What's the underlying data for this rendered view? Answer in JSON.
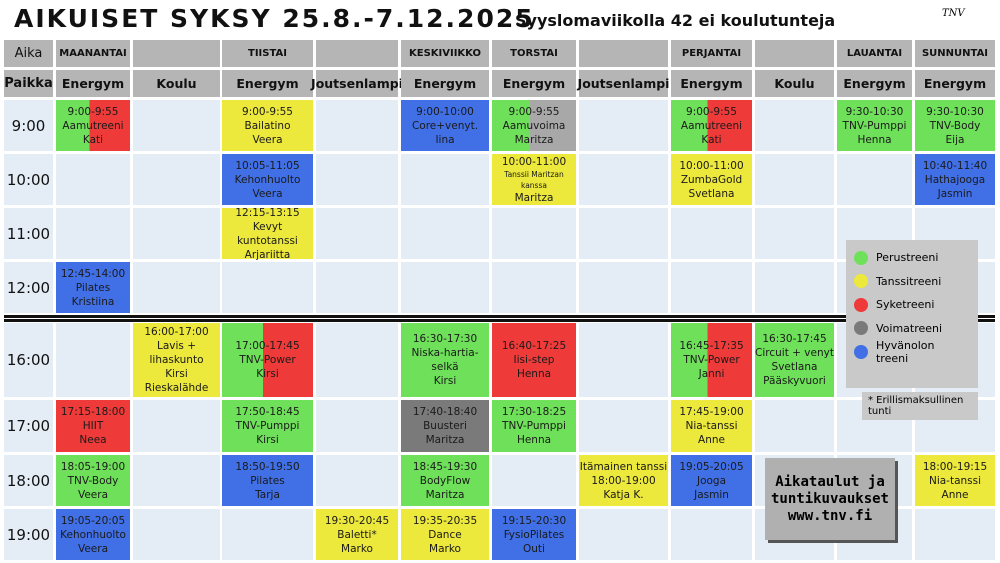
{
  "header": {
    "title": "AIKUISET SYKSY 25.8.-7.12.2025",
    "subtitle": "Syyslomaviikolla 42 ei koulutunteja",
    "logo": "TNV",
    "time_label": "Aika",
    "place_label": "Paikka",
    "days": [
      "MAANANTAI",
      null,
      "TIISTAI",
      null,
      "KESKIVIIKKO",
      "TORSTAI",
      null,
      "PERJANTAI",
      null,
      "LAUANTAI",
      "SUNNUNTAI"
    ],
    "places": [
      "Energym",
      "Koulu",
      "Energym",
      "Joutsenlampi",
      "Energym",
      "Energym",
      "Joutsenlampi",
      "Energym",
      "Koulu",
      "Energym",
      "Energym"
    ]
  },
  "rows": [
    {
      "time": "9:00",
      "cells": [
        {
          "lines": [
            "9:00-9:55",
            "Aamutreeni",
            "Kati"
          ],
          "colors": [
            "#6fe05a",
            "#ef3a3a"
          ]
        },
        null,
        {
          "lines": [
            "9:00-9:55",
            "Bailatino",
            "Veera"
          ],
          "colors": [
            "#ece83c"
          ]
        },
        null,
        {
          "lines": [
            "9:00-10:00",
            "Core+venyt.",
            "Iina"
          ],
          "colors": [
            "#4170e6"
          ]
        },
        {
          "lines": [
            "9:00-9:55",
            "Aamuvoima",
            "Maritza"
          ],
          "colors": [
            "#6fe05a",
            "#a8a8a8"
          ]
        },
        null,
        {
          "lines": [
            "9:00-9:55",
            "Aamutreeni",
            "Kati"
          ],
          "colors": [
            "#6fe05a",
            "#ef3a3a"
          ]
        },
        null,
        {
          "lines": [
            "9:30-10:30",
            "TNV-Pumppi",
            "Henna"
          ],
          "colors": [
            "#6fe05a"
          ]
        },
        {
          "lines": [
            "9:30-10:30",
            "TNV-Body",
            "Eija"
          ],
          "colors": [
            "#6fe05a"
          ]
        }
      ]
    },
    {
      "time": "10:00",
      "cells": [
        null,
        null,
        {
          "lines": [
            "10:05-11:05",
            "Kehonhuolto",
            "Veera"
          ],
          "colors": [
            "#4170e6"
          ]
        },
        null,
        null,
        {
          "lines": [
            "10:00-11:00",
            "Tanssii Maritzan kanssa",
            "Maritza"
          ],
          "colors": [
            "#ece83c"
          ]
        },
        null,
        {
          "lines": [
            "10:00-11:00",
            "ZumbaGold",
            "Svetlana"
          ],
          "colors": [
            "#ece83c"
          ]
        },
        null,
        null,
        {
          "lines": [
            "10:40-11:40",
            "Hathajooga",
            "Jasmin"
          ],
          "colors": [
            "#4170e6"
          ]
        }
      ]
    },
    {
      "time": "11:00",
      "cells": [
        null,
        null,
        {
          "lines": [
            "12:15-13:15",
            "Kevyt kuntotanssi",
            "Arjariitta"
          ],
          "colors": [
            "#ece83c"
          ]
        },
        null,
        null,
        null,
        null,
        null,
        null,
        null,
        null
      ]
    },
    {
      "time": "12:00",
      "cells": [
        {
          "lines": [
            "12:45-14:00",
            "Pilates",
            "Kristiina"
          ],
          "colors": [
            "#4170e6"
          ]
        },
        null,
        null,
        null,
        null,
        null,
        null,
        null,
        null,
        null,
        null
      ]
    },
    {
      "time": "16:00",
      "cells": [
        null,
        {
          "lines": [
            "16:00-17:00",
            "Lavis +",
            "lihaskunto",
            "Kirsi",
            "Rieskalähde"
          ],
          "colors": [
            "#ece83c"
          ]
        },
        {
          "lines": [
            "17:00-17:45",
            "TNV-Power",
            "Kirsi"
          ],
          "colors": [
            "#6fe05a",
            "#ef3a3a"
          ]
        },
        null,
        {
          "lines": [
            "16:30-17:30",
            "Niska-hartia-",
            "selkä",
            "Kirsi"
          ],
          "colors": [
            "#6fe05a"
          ]
        },
        {
          "lines": [
            "16:40-17:25",
            "Iisi-step",
            "Henna"
          ],
          "colors": [
            "#ef3a3a"
          ]
        },
        null,
        {
          "lines": [
            "16:45-17:35",
            "TNV-Power",
            "Janni"
          ],
          "colors": [
            "#6fe05a",
            "#ef3a3a"
          ]
        },
        {
          "lines": [
            "16:30-17:45",
            "Circuit + venyt",
            "Svetlana",
            "Pääskyvuori"
          ],
          "colors": [
            "#6fe05a"
          ]
        },
        null,
        null
      ]
    },
    {
      "time": "17:00",
      "cells": [
        {
          "lines": [
            "17:15-18:00",
            "HIIT",
            "Neea"
          ],
          "colors": [
            "#ef3a3a"
          ]
        },
        null,
        {
          "lines": [
            "17:50-18:45",
            "TNV-Pumppi",
            "Kirsi"
          ],
          "colors": [
            "#6fe05a"
          ]
        },
        null,
        {
          "lines": [
            "17:40-18:40",
            "Buusteri",
            "Maritza"
          ],
          "colors": [
            "#7a7a7a"
          ]
        },
        {
          "lines": [
            "17:30-18:25",
            "TNV-Pumppi",
            "Henna"
          ],
          "colors": [
            "#6fe05a"
          ]
        },
        null,
        {
          "lines": [
            "17:45-19:00",
            "Nia-tanssi",
            "Anne"
          ],
          "colors": [
            "#ece83c"
          ]
        },
        null,
        null,
        null
      ]
    },
    {
      "time": "18:00",
      "cells": [
        {
          "lines": [
            "18:05-19:00",
            "TNV-Body",
            "Veera"
          ],
          "colors": [
            "#6fe05a"
          ]
        },
        null,
        {
          "lines": [
            "18:50-19:50",
            "Pilates",
            "Tarja"
          ],
          "colors": [
            "#4170e6"
          ]
        },
        null,
        {
          "lines": [
            "18:45-19:30",
            "BodyFlow",
            "Maritza"
          ],
          "colors": [
            "#6fe05a"
          ]
        },
        null,
        {
          "lines": [
            "Itämainen tanssi",
            "18:00-19:00",
            "Katja K."
          ],
          "colors": [
            "#ece83c"
          ]
        },
        {
          "lines": [
            "19:05-20:05",
            "Jooga",
            "Jasmin"
          ],
          "colors": [
            "#4170e6"
          ]
        },
        null,
        null,
        {
          "lines": [
            "18:00-19:15",
            "Nia-tanssi",
            "Anne"
          ],
          "colors": [
            "#ece83c"
          ]
        }
      ]
    },
    {
      "time": "19:00",
      "cells": [
        {
          "lines": [
            "19:05-20:05",
            "Kehonhuolto",
            "Veera"
          ],
          "colors": [
            "#4170e6"
          ]
        },
        null,
        null,
        {
          "lines": [
            "19:30-20:45",
            "Baletti*",
            "Marko"
          ],
          "colors": [
            "#ece83c"
          ]
        },
        {
          "lines": [
            "19:35-20:35",
            "Dance",
            "Marko"
          ],
          "colors": [
            "#ece83c"
          ]
        },
        {
          "lines": [
            "19:15-20:30",
            "FysioPilates",
            "Outi"
          ],
          "colors": [
            "#4170e6"
          ]
        },
        null,
        null,
        null,
        null,
        null
      ]
    }
  ],
  "legend": [
    {
      "label": "Perustreeni",
      "color": "#6fe05a"
    },
    {
      "label": "Tanssitreeni",
      "color": "#ece83c"
    },
    {
      "label": "Syketreeni",
      "color": "#ef3a3a"
    },
    {
      "label": "Voimatreeni",
      "color": "#7a7a7a"
    },
    {
      "label": "Hyvänolon treeni",
      "color": "#4170e6"
    }
  ],
  "note": "* Erillismaksullinen tunti",
  "info": [
    "Aikataulut ja",
    "tuntikuvaukset",
    "www.tnv.fi"
  ]
}
